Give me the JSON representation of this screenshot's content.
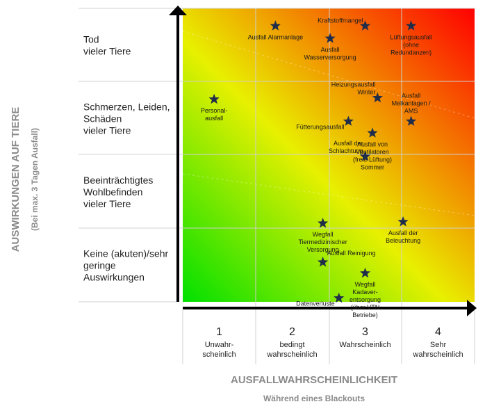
{
  "chart_data": {
    "type": "scatter",
    "title": "",
    "xlabel": "AUSFALLWAHRSCHEINLICHKEIT",
    "xlabel_sub": "Während eines Blackouts",
    "ylabel": "AUSWIRKUNGEN AUF TIERE",
    "ylabel_sub": "(Bei max. 3 Tagen Ausfall)",
    "xlim": [
      0.5,
      4.5
    ],
    "ylim": [
      0.5,
      4.5
    ],
    "x_categories": [
      {
        "number": "1",
        "lines": [
          "Unwahr-",
          "scheinlich"
        ]
      },
      {
        "number": "2",
        "lines": [
          "bedingt",
          "wahrscheinlich"
        ]
      },
      {
        "number": "3",
        "lines": [
          "Wahrscheinlich"
        ]
      },
      {
        "number": "4",
        "lines": [
          "Sehr",
          "wahrscheinlich"
        ]
      }
    ],
    "y_categories": [
      {
        "lines": [
          "Keine (akuten)/sehr",
          "geringe",
          "Auswirkungen"
        ]
      },
      {
        "lines": [
          "Beeinträchtigtes",
          "Wohlbefinden",
          "vieler Tiere"
        ]
      },
      {
        "lines": [
          "Schmerzen, Leiden,",
          "Schäden",
          "vieler Tiere"
        ]
      },
      {
        "lines": [
          "Tod",
          "vieler Tiere"
        ]
      }
    ],
    "background": {
      "low_color": "#00e000",
      "mid_color": "#e8f000",
      "high_color": "#ff0000"
    },
    "marker_color": "#1f2d4a",
    "points": [
      {
        "lines": [
          "Ausfall Alarmanlage"
        ],
        "x": 1.77,
        "y": 4.26,
        "label_pos": "below"
      },
      {
        "lines": [
          "Ausfall",
          "Wasserversorgung"
        ],
        "x": 2.52,
        "y": 4.09,
        "label_pos": "below"
      },
      {
        "lines": [
          "Kraftstoffmangel"
        ],
        "x": 3.0,
        "y": 4.26,
        "label_pos": "above-left"
      },
      {
        "lines": [
          "Lüftungsausfall",
          "(ohne",
          "Redundanzen)"
        ],
        "x": 3.63,
        "y": 4.26,
        "label_pos": "below"
      },
      {
        "lines": [
          "Personal-",
          "ausfall"
        ],
        "x": 0.93,
        "y": 3.26,
        "label_pos": "below"
      },
      {
        "lines": [
          "Heizungsausfall",
          "Winter"
        ],
        "x": 3.17,
        "y": 3.28,
        "label_pos": "above-left"
      },
      {
        "lines": [
          "Ausfall",
          "Melkanlagen /",
          "AMS"
        ],
        "x": 3.63,
        "y": 2.96,
        "label_pos": "above"
      },
      {
        "lines": [
          "Fütterungsausfall"
        ],
        "x": 2.77,
        "y": 2.96,
        "label_pos": "below-left"
      },
      {
        "lines": [
          "Ausfall von",
          "Ventilatoren",
          "(freie Lüftung)",
          "Sommer"
        ],
        "x": 3.1,
        "y": 2.8,
        "label_pos": "below"
      },
      {
        "lines": [
          "Ausfall der",
          "Schlachtung"
        ],
        "x": 3.0,
        "y": 2.48,
        "label_pos": "above-left"
      },
      {
        "lines": [
          "Wegfall",
          "Tiermedizinischer",
          "Versorgung"
        ],
        "x": 2.42,
        "y": 1.57,
        "label_pos": "below"
      },
      {
        "lines": [
          "Ausfall der",
          "Beleuchtung"
        ],
        "x": 3.52,
        "y": 1.59,
        "label_pos": "below"
      },
      {
        "lines": [
          "Ausfall Reinigung"
        ],
        "x": 2.42,
        "y": 1.04,
        "label_pos": "above-right"
      },
      {
        "lines": [
          "Wegfall",
          "Kadaver-",
          "entsorgung",
          "(über VTN",
          "Betriebe)"
        ],
        "x": 3.0,
        "y": 0.89,
        "label_pos": "below"
      },
      {
        "lines": [
          "Datenverluste"
        ],
        "x": 2.64,
        "y": 0.55,
        "label_pos": "below-left"
      }
    ]
  }
}
